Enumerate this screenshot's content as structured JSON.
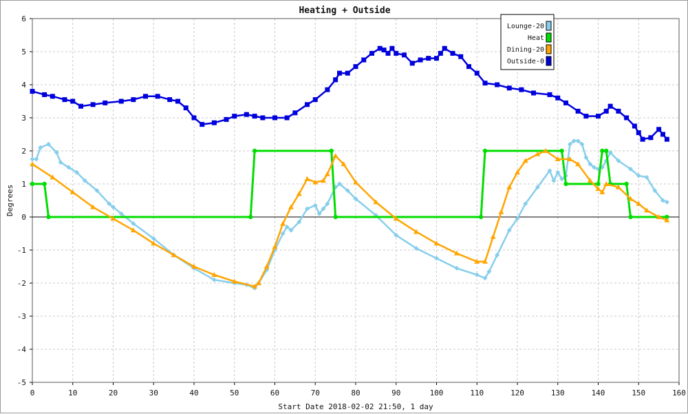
{
  "chart_data": {
    "type": "line",
    "title": "Heating + Outside",
    "xlabel": "Start Date 2018-02-02 21:50, 1 day",
    "ylabel": "Degrees",
    "xlim": [
      0,
      160
    ],
    "ylim": [
      -5,
      6
    ],
    "x_ticks": [
      0,
      10,
      20,
      30,
      40,
      50,
      60,
      70,
      80,
      90,
      100,
      110,
      120,
      130,
      140,
      150,
      160
    ],
    "y_ticks": [
      -5,
      -4,
      -3,
      -2,
      -1,
      0,
      1,
      2,
      3,
      4,
      5,
      6
    ],
    "grid": true,
    "legend_position": "top-right",
    "series": [
      {
        "name": "Lounge-20",
        "color": "#87ceeb",
        "marker": "diamond",
        "points": [
          [
            0,
            1.75
          ],
          [
            1,
            1.75
          ],
          [
            2,
            2.1
          ],
          [
            4,
            2.2
          ],
          [
            6,
            1.95
          ],
          [
            7,
            1.65
          ],
          [
            9,
            1.5
          ],
          [
            11,
            1.35
          ],
          [
            13,
            1.1
          ],
          [
            16,
            0.8
          ],
          [
            19,
            0.4
          ],
          [
            20,
            0.3
          ],
          [
            22,
            0.1
          ],
          [
            25,
            -0.2
          ],
          [
            30,
            -0.65
          ],
          [
            35,
            -1.15
          ],
          [
            40,
            -1.55
          ],
          [
            45,
            -1.9
          ],
          [
            50,
            -2.0
          ],
          [
            53,
            -2.05
          ],
          [
            55,
            -2.15
          ],
          [
            56,
            -2.0
          ],
          [
            58,
            -1.6
          ],
          [
            60,
            -1.0
          ],
          [
            62,
            -0.5
          ],
          [
            63,
            -0.3
          ],
          [
            64,
            -0.4
          ],
          [
            66,
            -0.15
          ],
          [
            68,
            0.25
          ],
          [
            70,
            0.35
          ],
          [
            71,
            0.1
          ],
          [
            72,
            0.25
          ],
          [
            73,
            0.4
          ],
          [
            75,
            0.9
          ],
          [
            76,
            1.0
          ],
          [
            78,
            0.8
          ],
          [
            80,
            0.55
          ],
          [
            85,
            0.05
          ],
          [
            90,
            -0.55
          ],
          [
            95,
            -0.95
          ],
          [
            100,
            -1.25
          ],
          [
            105,
            -1.55
          ],
          [
            110,
            -1.75
          ],
          [
            112,
            -1.85
          ],
          [
            113,
            -1.65
          ],
          [
            115,
            -1.15
          ],
          [
            118,
            -0.4
          ],
          [
            120,
            -0.05
          ],
          [
            122,
            0.4
          ],
          [
            125,
            0.9
          ],
          [
            128,
            1.4
          ],
          [
            129,
            1.1
          ],
          [
            130,
            1.35
          ],
          [
            131,
            1.15
          ],
          [
            132,
            1.25
          ],
          [
            133,
            2.2
          ],
          [
            134,
            2.3
          ],
          [
            135,
            2.3
          ],
          [
            136,
            2.2
          ],
          [
            137,
            1.8
          ],
          [
            138,
            1.6
          ],
          [
            139,
            1.5
          ],
          [
            140,
            1.45
          ],
          [
            141,
            1.5
          ],
          [
            142,
            1.7
          ],
          [
            143,
            1.95
          ],
          [
            145,
            1.7
          ],
          [
            148,
            1.45
          ],
          [
            150,
            1.25
          ],
          [
            152,
            1.2
          ],
          [
            154,
            0.8
          ],
          [
            156,
            0.5
          ],
          [
            157,
            0.45
          ]
        ]
      },
      {
        "name": "Heat",
        "color": "#00dd00",
        "marker": "circle",
        "points": [
          [
            0,
            1
          ],
          [
            3,
            1
          ],
          [
            4,
            0
          ],
          [
            54,
            0
          ],
          [
            55,
            2
          ],
          [
            74,
            2
          ],
          [
            75,
            0
          ],
          [
            111,
            0
          ],
          [
            112,
            2
          ],
          [
            131,
            2
          ],
          [
            132,
            1
          ],
          [
            140,
            1
          ],
          [
            141,
            2
          ],
          [
            142,
            2
          ],
          [
            143,
            1
          ],
          [
            147,
            1
          ],
          [
            148,
            0
          ],
          [
            157,
            0
          ]
        ]
      },
      {
        "name": "Dining-20",
        "color": "#ffa500",
        "marker": "triangle",
        "points": [
          [
            0,
            1.6
          ],
          [
            5,
            1.2
          ],
          [
            10,
            0.75
          ],
          [
            15,
            0.3
          ],
          [
            20,
            -0.05
          ],
          [
            25,
            -0.4
          ],
          [
            30,
            -0.8
          ],
          [
            35,
            -1.15
          ],
          [
            40,
            -1.5
          ],
          [
            45,
            -1.75
          ],
          [
            50,
            -1.95
          ],
          [
            55,
            -2.1
          ],
          [
            56,
            -2.0
          ],
          [
            58,
            -1.5
          ],
          [
            60,
            -0.9
          ],
          [
            62,
            -0.2
          ],
          [
            64,
            0.3
          ],
          [
            66,
            0.7
          ],
          [
            68,
            1.15
          ],
          [
            70,
            1.05
          ],
          [
            72,
            1.1
          ],
          [
            73,
            1.3
          ],
          [
            75,
            1.85
          ],
          [
            77,
            1.6
          ],
          [
            80,
            1.05
          ],
          [
            85,
            0.45
          ],
          [
            90,
            -0.05
          ],
          [
            95,
            -0.45
          ],
          [
            100,
            -0.8
          ],
          [
            105,
            -1.1
          ],
          [
            110,
            -1.35
          ],
          [
            112,
            -1.35
          ],
          [
            114,
            -0.6
          ],
          [
            116,
            0.15
          ],
          [
            118,
            0.9
          ],
          [
            120,
            1.35
          ],
          [
            122,
            1.7
          ],
          [
            125,
            1.9
          ],
          [
            127,
            2.0
          ],
          [
            130,
            1.75
          ],
          [
            133,
            1.75
          ],
          [
            135,
            1.6
          ],
          [
            138,
            1.1
          ],
          [
            140,
            0.85
          ],
          [
            141,
            0.75
          ],
          [
            142,
            1.0
          ],
          [
            145,
            0.9
          ],
          [
            148,
            0.55
          ],
          [
            150,
            0.4
          ],
          [
            152,
            0.2
          ],
          [
            155,
            0.0
          ],
          [
            157,
            -0.1
          ]
        ]
      },
      {
        "name": "Outside-0",
        "color": "#0000dd",
        "marker": "square",
        "points": [
          [
            0,
            3.8
          ],
          [
            3,
            3.7
          ],
          [
            5,
            3.65
          ],
          [
            8,
            3.55
          ],
          [
            10,
            3.5
          ],
          [
            12,
            3.35
          ],
          [
            15,
            3.4
          ],
          [
            18,
            3.45
          ],
          [
            22,
            3.5
          ],
          [
            25,
            3.55
          ],
          [
            28,
            3.65
          ],
          [
            31,
            3.65
          ],
          [
            34,
            3.55
          ],
          [
            36,
            3.5
          ],
          [
            38,
            3.3
          ],
          [
            40,
            3.0
          ],
          [
            42,
            2.8
          ],
          [
            45,
            2.85
          ],
          [
            48,
            2.95
          ],
          [
            50,
            3.05
          ],
          [
            53,
            3.1
          ],
          [
            55,
            3.05
          ],
          [
            57,
            3.0
          ],
          [
            60,
            3.0
          ],
          [
            63,
            3.0
          ],
          [
            65,
            3.15
          ],
          [
            68,
            3.4
          ],
          [
            70,
            3.55
          ],
          [
            73,
            3.85
          ],
          [
            75,
            4.15
          ],
          [
            76,
            4.35
          ],
          [
            78,
            4.35
          ],
          [
            80,
            4.55
          ],
          [
            82,
            4.75
          ],
          [
            84,
            4.95
          ],
          [
            86,
            5.1
          ],
          [
            87,
            5.05
          ],
          [
            88,
            4.95
          ],
          [
            89,
            5.1
          ],
          [
            90,
            4.95
          ],
          [
            92,
            4.9
          ],
          [
            94,
            4.65
          ],
          [
            96,
            4.75
          ],
          [
            98,
            4.8
          ],
          [
            100,
            4.8
          ],
          [
            101,
            4.95
          ],
          [
            102,
            5.1
          ],
          [
            104,
            4.95
          ],
          [
            106,
            4.85
          ],
          [
            108,
            4.55
          ],
          [
            110,
            4.35
          ],
          [
            112,
            4.05
          ],
          [
            115,
            4.0
          ],
          [
            118,
            3.9
          ],
          [
            121,
            3.85
          ],
          [
            124,
            3.75
          ],
          [
            128,
            3.7
          ],
          [
            130,
            3.6
          ],
          [
            132,
            3.45
          ],
          [
            135,
            3.2
          ],
          [
            137,
            3.05
          ],
          [
            140,
            3.05
          ],
          [
            142,
            3.2
          ],
          [
            143,
            3.35
          ],
          [
            145,
            3.2
          ],
          [
            147,
            3.0
          ],
          [
            149,
            2.75
          ],
          [
            150,
            2.55
          ],
          [
            151,
            2.35
          ],
          [
            153,
            2.4
          ],
          [
            155,
            2.65
          ],
          [
            156,
            2.5
          ],
          [
            157,
            2.35
          ]
        ]
      }
    ]
  }
}
